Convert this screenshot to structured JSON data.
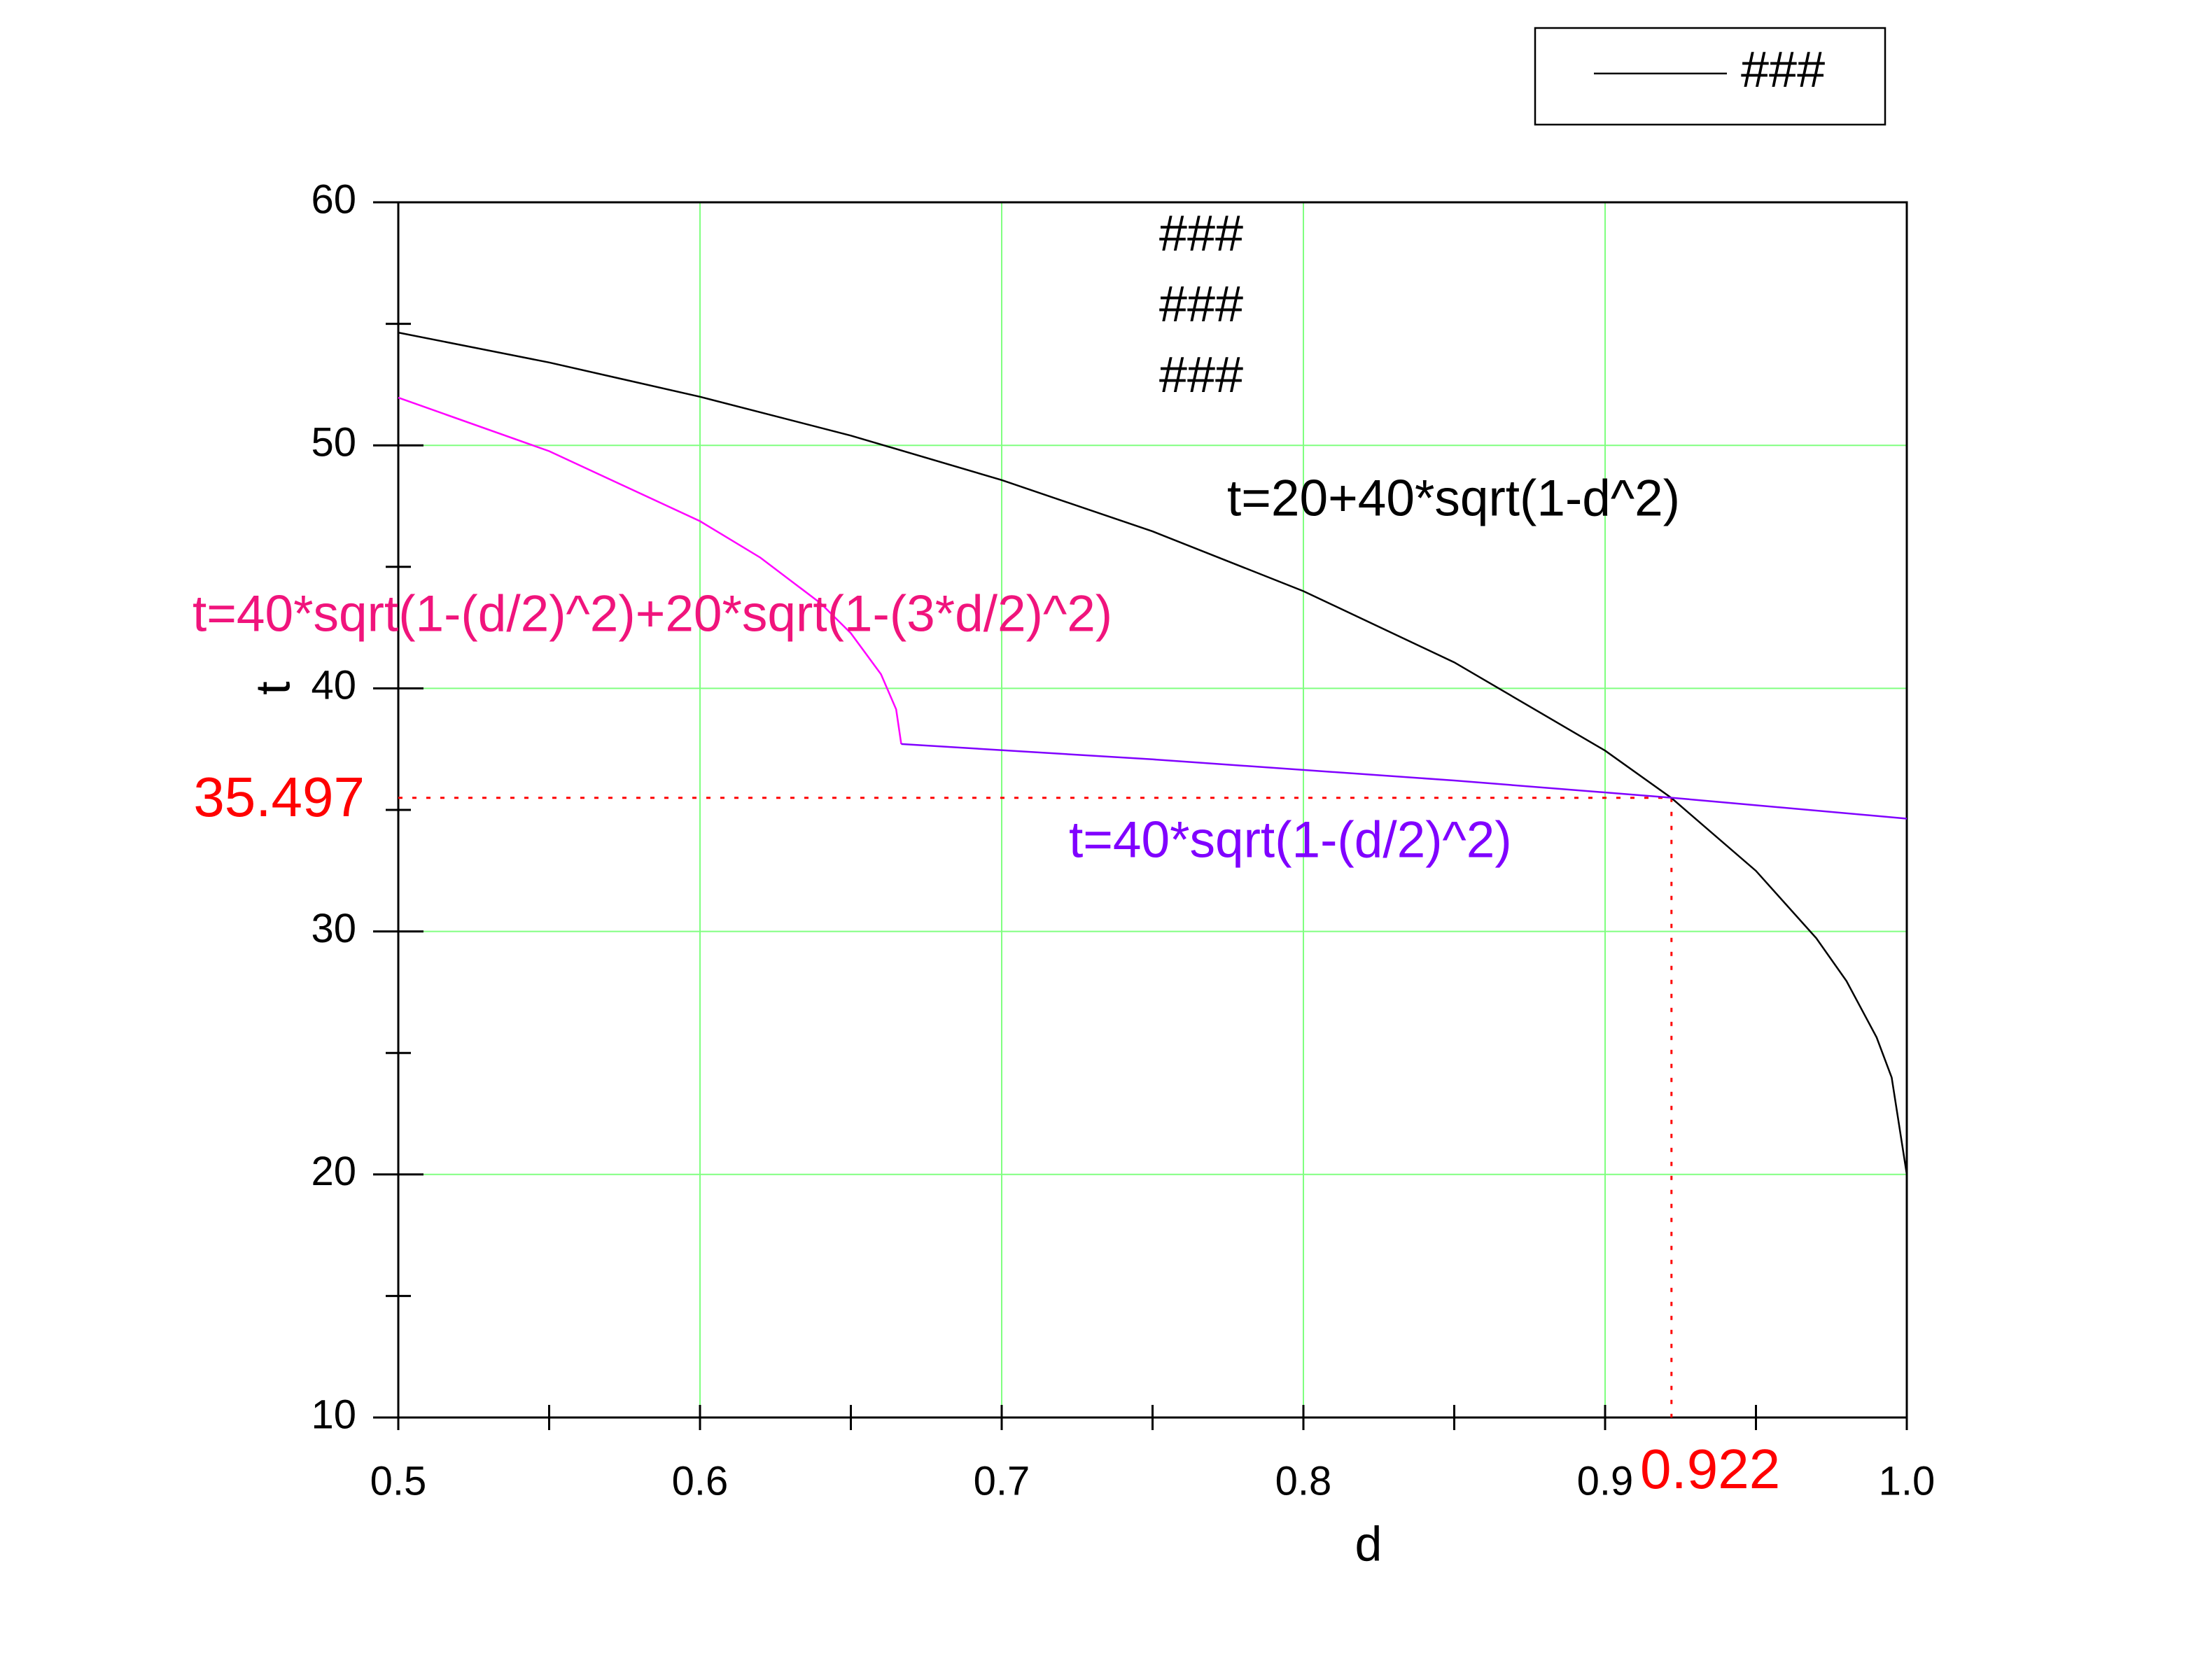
{
  "chart_data": {
    "type": "line",
    "title": [
      "###",
      "###",
      "###"
    ],
    "x_label": "d",
    "y_label": "t",
    "xlim": [
      0.5,
      1
    ],
    "ylim": [
      10,
      60
    ],
    "xticks": [
      0.5,
      0.6,
      0.7,
      0.8,
      0.9,
      {
        "value": 1,
        "label": "1.0"
      }
    ],
    "xminorticks": [
      0.55,
      0.65,
      0.75,
      0.85,
      0.95
    ],
    "yticks": [
      10,
      20,
      30,
      40,
      50,
      60
    ],
    "yminorticks": [
      15,
      25,
      35,
      45,
      55
    ],
    "grid": true,
    "grid_color": "#80ff80",
    "legend": "upper right",
    "series": [
      {
        "name": "###",
        "color": "#000000",
        "x": [
          0.5,
          0.55,
          0.6,
          0.65,
          0.7,
          0.75,
          0.8,
          0.85,
          0.9,
          0.922,
          0.95,
          0.97,
          0.98,
          0.99,
          0.995,
          1.0
        ],
        "values": [
          54.64,
          53.41,
          52.0,
          50.4,
          48.57,
          46.46,
          44.0,
          41.07,
          37.44,
          35.49,
          32.49,
          29.72,
          27.96,
          25.64,
          23.99,
          20.0
        ]
      },
      {
        "color": "#ff00ff",
        "x": [
          0.5,
          0.55,
          0.6,
          0.62,
          0.64,
          0.65,
          0.66,
          0.665,
          0.6667
        ],
        "values": [
          51.96,
          49.76,
          46.88,
          45.38,
          43.5,
          42.27,
          40.58,
          39.14,
          37.71
        ]
      },
      {
        "color": "#8000ff",
        "x": [
          0.6667,
          0.75,
          0.85,
          0.922,
          1.0
        ],
        "values": [
          37.71,
          37.08,
          36.21,
          35.5,
          34.64
        ]
      }
    ],
    "annotations": [
      {
        "text": "t=20+40*sqrt(1-d^2)",
        "color": "#000000"
      },
      {
        "text": "t=40*sqrt(1-(d/2)^2)+20*sqrt(1-(3*d/2)^2)",
        "color": "#f0147c"
      },
      {
        "text": "t=40*sqrt(1-(d/2)^2)",
        "color": "#8000ff"
      }
    ],
    "reference": {
      "x": 0.922,
      "y": 35.497,
      "color": "#ff0000"
    }
  }
}
